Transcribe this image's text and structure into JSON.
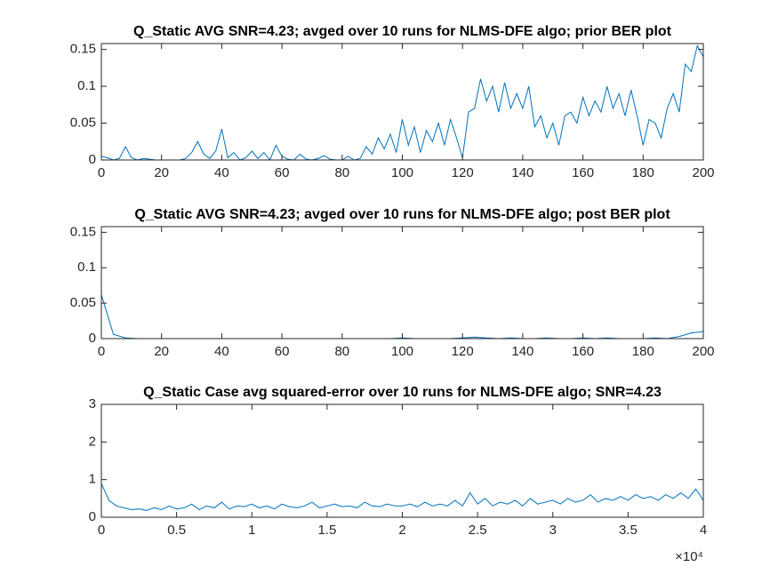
{
  "chart_data": [
    {
      "type": "line",
      "title": "Q_Static AVG SNR=4.23; avged over 10 runs for NLMS-DFE algo; prior BER plot",
      "color": "#0072bd",
      "x": [
        0,
        2,
        4,
        6,
        8,
        10,
        12,
        14,
        16,
        18,
        20,
        22,
        24,
        26,
        28,
        30,
        32,
        34,
        36,
        38,
        40,
        42,
        44,
        46,
        48,
        50,
        52,
        54,
        56,
        58,
        60,
        62,
        64,
        66,
        68,
        70,
        72,
        74,
        76,
        78,
        80,
        82,
        84,
        86,
        88,
        90,
        92,
        94,
        96,
        98,
        100,
        102,
        104,
        106,
        108,
        110,
        112,
        114,
        116,
        118,
        120,
        122,
        124,
        126,
        128,
        130,
        132,
        134,
        136,
        138,
        140,
        142,
        144,
        146,
        148,
        150,
        152,
        154,
        156,
        158,
        160,
        162,
        164,
        166,
        168,
        170,
        172,
        174,
        176,
        178,
        180,
        182,
        184,
        186,
        188,
        190,
        192,
        194,
        196,
        198,
        200
      ],
      "values": [
        0.005,
        0.003,
        0,
        0.002,
        0.018,
        0.003,
        0,
        0.002,
        0.001,
        0,
        0,
        0,
        0,
        0,
        0.002,
        0.01,
        0.025,
        0.008,
        0.002,
        0.012,
        0.042,
        0.003,
        0.01,
        0,
        0.003,
        0.012,
        0.002,
        0.01,
        0,
        0.02,
        0.005,
        0.001,
        0,
        0.008,
        0.001,
        0,
        0.002,
        0.006,
        0.001,
        0,
        0,
        0.005,
        0,
        0.002,
        0.018,
        0.008,
        0.03,
        0.015,
        0.035,
        0.01,
        0.055,
        0.02,
        0.045,
        0.01,
        0.04,
        0.025,
        0.05,
        0.02,
        0.055,
        0.03,
        0.003,
        0.065,
        0.07,
        0.11,
        0.08,
        0.1,
        0.065,
        0.105,
        0.07,
        0.09,
        0.07,
        0.1,
        0.045,
        0.06,
        0.03,
        0.05,
        0.02,
        0.06,
        0.065,
        0.05,
        0.085,
        0.06,
        0.08,
        0.065,
        0.1,
        0.07,
        0.09,
        0.06,
        0.095,
        0.06,
        0.02,
        0.055,
        0.05,
        0.03,
        0.07,
        0.09,
        0.065,
        0.13,
        0.12,
        0.155,
        0.14
      ],
      "xlim": [
        0,
        200
      ],
      "ylim": [
        0,
        0.158
      ],
      "xticks": [
        0,
        20,
        40,
        60,
        80,
        100,
        120,
        140,
        160,
        180,
        200
      ],
      "yticks": [
        0,
        0.05,
        0.1,
        0.15
      ]
    },
    {
      "type": "line",
      "title": "Q_Static AVG SNR=4.23; avged over 10 runs for NLMS-DFE algo; post BER plot",
      "color": "#0072bd",
      "x": [
        0,
        4,
        8,
        12,
        16,
        20,
        24,
        28,
        32,
        36,
        40,
        44,
        48,
        52,
        56,
        60,
        64,
        68,
        72,
        76,
        80,
        84,
        88,
        92,
        96,
        100,
        104,
        108,
        112,
        116,
        120,
        124,
        128,
        132,
        136,
        140,
        144,
        148,
        152,
        156,
        160,
        164,
        168,
        172,
        176,
        180,
        184,
        188,
        192,
        196,
        200
      ],
      "values": [
        0.062,
        0.006,
        0.001,
        0,
        0,
        0,
        0,
        0,
        0,
        0,
        0,
        0,
        0,
        0,
        0,
        0,
        0,
        0,
        0,
        0,
        0,
        0,
        0,
        0,
        0,
        0.001,
        0,
        0,
        0,
        0,
        0.001,
        0.002,
        0.001,
        0,
        0.001,
        0,
        0,
        0.001,
        0,
        0,
        0.001,
        0,
        0.001,
        0,
        0,
        0,
        0.001,
        0,
        0.003,
        0.008,
        0.01
      ],
      "xlim": [
        0,
        200
      ],
      "ylim": [
        0,
        0.158
      ],
      "xticks": [
        0,
        20,
        40,
        60,
        80,
        100,
        120,
        140,
        160,
        180,
        200
      ],
      "yticks": [
        0,
        0.05,
        0.1,
        0.15
      ]
    },
    {
      "type": "line",
      "title": "Q_Static Case avg squared-error over 10 runs for NLMS-DFE algo; SNR=4.23",
      "color": "#0072bd",
      "x": [
        0,
        500,
        1000,
        1500,
        2000,
        2500,
        3000,
        3500,
        4000,
        4500,
        5000,
        5500,
        6000,
        6500,
        7000,
        7500,
        8000,
        8500,
        9000,
        9500,
        10000,
        10500,
        11000,
        11500,
        12000,
        12500,
        13000,
        13500,
        14000,
        14500,
        15000,
        15500,
        16000,
        16500,
        17000,
        17500,
        18000,
        18500,
        19000,
        19500,
        20000,
        20500,
        21000,
        21500,
        22000,
        22500,
        23000,
        23500,
        24000,
        24500,
        25000,
        25500,
        26000,
        26500,
        27000,
        27500,
        28000,
        28500,
        29000,
        29500,
        30000,
        30500,
        31000,
        31500,
        32000,
        32500,
        33000,
        33500,
        34000,
        34500,
        35000,
        35500,
        36000,
        36500,
        37000,
        37500,
        38000,
        38500,
        39000,
        39500,
        40000
      ],
      "values": [
        0.9,
        0.45,
        0.3,
        0.25,
        0.2,
        0.22,
        0.18,
        0.25,
        0.2,
        0.3,
        0.22,
        0.25,
        0.35,
        0.2,
        0.3,
        0.25,
        0.4,
        0.22,
        0.3,
        0.28,
        0.35,
        0.25,
        0.3,
        0.22,
        0.35,
        0.28,
        0.25,
        0.3,
        0.4,
        0.25,
        0.3,
        0.35,
        0.28,
        0.3,
        0.25,
        0.4,
        0.3,
        0.28,
        0.35,
        0.3,
        0.3,
        0.35,
        0.28,
        0.4,
        0.3,
        0.35,
        0.3,
        0.45,
        0.3,
        0.65,
        0.35,
        0.5,
        0.3,
        0.4,
        0.35,
        0.45,
        0.3,
        0.5,
        0.35,
        0.4,
        0.45,
        0.35,
        0.5,
        0.4,
        0.45,
        0.6,
        0.4,
        0.5,
        0.45,
        0.55,
        0.45,
        0.6,
        0.5,
        0.55,
        0.45,
        0.6,
        0.5,
        0.65,
        0.5,
        0.75,
        0.45
      ],
      "xlim": [
        0,
        40000
      ],
      "ylim": [
        0,
        3
      ],
      "xticks": [
        0,
        {
          "value": 5000,
          "label": "0.5"
        },
        {
          "value": 10000,
          "label": "1"
        },
        {
          "value": 15000,
          "label": "1.5"
        },
        {
          "value": 20000,
          "label": "2"
        },
        {
          "value": 25000,
          "label": "2.5"
        },
        {
          "value": 30000,
          "label": "3"
        },
        {
          "value": 35000,
          "label": "3.5"
        },
        {
          "value": 40000,
          "label": "4"
        }
      ],
      "yticks": [
        0,
        1,
        2,
        3
      ],
      "x_multiplier": "×10⁴"
    }
  ]
}
